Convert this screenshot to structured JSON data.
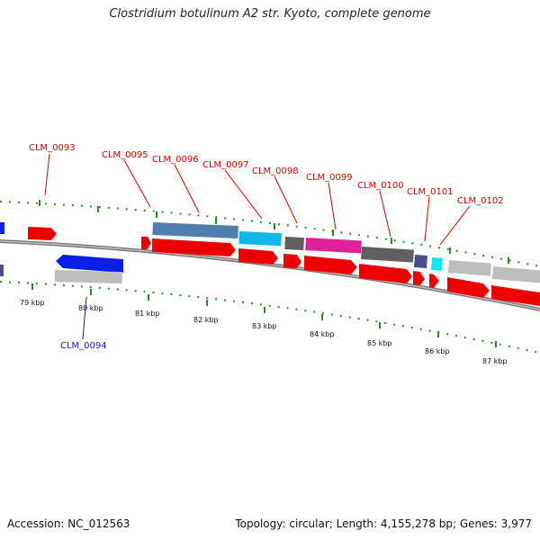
{
  "title": "Clostridium botulinum A2 str. Kyoto, complete genome",
  "footer": {
    "accession": "Accession: NC_012563",
    "summary": "Topology: circular; Length: 4,155,278 bp; Genes: 3,977"
  },
  "scale": {
    "tick_labels": [
      "79 kbp",
      "80 kbp",
      "81 kbp",
      "82 kbp",
      "83 kbp",
      "84 kbp",
      "85 kbp",
      "86 kbp",
      "87 kbp"
    ]
  },
  "gene_labels": [
    {
      "name": "CLM_0093",
      "strand": "top"
    },
    {
      "name": "CLM_0094",
      "strand": "bottom"
    },
    {
      "name": "CLM_0095",
      "strand": "top"
    },
    {
      "name": "CLM_0096",
      "strand": "top"
    },
    {
      "name": "CLM_0097",
      "strand": "top"
    },
    {
      "name": "CLM_0098",
      "strand": "top"
    },
    {
      "name": "CLM_0099",
      "strand": "top"
    },
    {
      "name": "CLM_0100",
      "strand": "top"
    },
    {
      "name": "CLM_0101",
      "strand": "top"
    },
    {
      "name": "CLM_0102",
      "strand": "top"
    }
  ],
  "colors": {
    "forward_cds": "#ee0000",
    "reverse_cds": "#0a1ee6",
    "backbone": "#808080",
    "ticks": "#2a8a2a",
    "label_forward": "#cc0000",
    "label_reverse": "#1a1aa6",
    "feature_steelblue": "#4f7fae",
    "feature_cyan": "#10b8e8",
    "feature_gray": "#5f5f5f",
    "feature_magenta": "#e0229a",
    "feature_slate": "#4b4e8e",
    "feature_aqua": "#14e6ee",
    "feature_lightgray": "#bdbdbd"
  }
}
